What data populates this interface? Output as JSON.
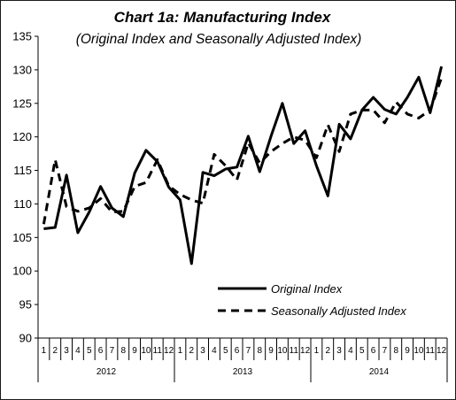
{
  "chart_data": {
    "type": "line",
    "title": "Chart 1a: Manufacturing Index",
    "subtitle": "(Original Index and Seasonally Adjusted Index)",
    "xlabel": "",
    "ylabel": "",
    "ylim": [
      90,
      135
    ],
    "yticks": [
      90,
      95,
      100,
      105,
      110,
      115,
      120,
      125,
      130,
      135
    ],
    "grid": false,
    "legend_position": "bottom-right",
    "years": [
      "2012",
      "2013",
      "2014"
    ],
    "months": [
      "1",
      "2",
      "3",
      "4",
      "5",
      "6",
      "7",
      "8",
      "9",
      "10",
      "11",
      "12"
    ],
    "series": [
      {
        "name": "Original Index",
        "style": "solid",
        "color": "#000000",
        "values": [
          106.3,
          106.5,
          114.3,
          105.7,
          108.8,
          112.6,
          109.4,
          108.1,
          114.6,
          118.0,
          116.3,
          112.5,
          110.6,
          101.1,
          114.7,
          114.2,
          115.2,
          115.5,
          120.1,
          114.8,
          120.1,
          125.0,
          119.0,
          120.9,
          115.7,
          111.2,
          121.9,
          119.7,
          124.0,
          125.9,
          124.1,
          123.4,
          125.9,
          128.9,
          123.6,
          130.5
        ]
      },
      {
        "name": "Seasonally Adjusted Index",
        "style": "dashed",
        "color": "#000000",
        "values": [
          107.0,
          116.6,
          109.6,
          108.9,
          109.4,
          110.8,
          108.8,
          108.9,
          112.6,
          113.2,
          116.6,
          112.7,
          111.4,
          110.6,
          110.1,
          117.4,
          115.7,
          113.6,
          119.1,
          116.1,
          117.8,
          119.0,
          120.0,
          119.5,
          116.9,
          121.8,
          117.8,
          123.4,
          124.0,
          124.0,
          122.1,
          125.2,
          123.4,
          122.8,
          124.0,
          128.8
        ]
      }
    ]
  }
}
